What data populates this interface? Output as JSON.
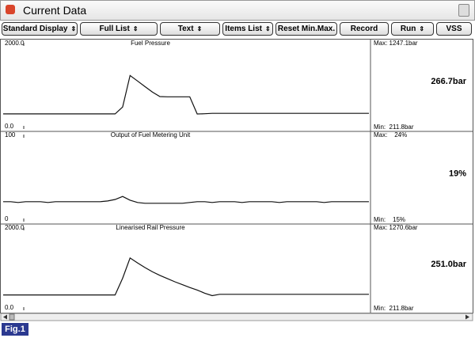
{
  "header": {
    "title": "Current Data"
  },
  "toolbar": {
    "buttons": [
      "Standard Display",
      "Full List",
      "Text",
      "Items List",
      "Reset Min.Max.",
      "Record",
      "Run",
      "VSS"
    ]
  },
  "panels": [
    {
      "type": "line",
      "title": "Fuel Pressure",
      "ylim": [
        0,
        2000
      ],
      "yticks": [
        {
          "value": 0,
          "label": "0.0"
        },
        {
          "value": 2000,
          "label": "2000.0"
        }
      ],
      "max": "Max: 1247.1bar",
      "min": "Min:  211.8bar",
      "current": "266.7bar",
      "values": [
        215,
        215,
        215,
        215,
        215,
        215,
        215,
        215,
        215,
        215,
        215,
        215,
        215,
        215,
        215,
        215,
        400,
        1247,
        1100,
        950,
        800,
        680,
        675,
        675,
        675,
        675,
        212,
        220,
        230,
        230,
        230,
        230,
        230,
        230,
        230,
        230,
        230,
        230,
        230,
        230,
        230,
        230,
        230,
        230,
        230,
        230,
        230,
        230,
        230,
        230
      ]
    },
    {
      "type": "line",
      "title": "Output of Fuel Metering Unit",
      "ylim": [
        0,
        100
      ],
      "yticks": [
        0,
        100
      ],
      "max": "Max:    24%",
      "min": "Min:    15%",
      "current": "19%",
      "values": [
        17,
        17,
        16,
        17,
        17,
        17,
        16,
        17,
        17,
        17,
        17,
        17,
        17,
        17,
        18,
        20,
        24,
        19,
        16,
        15,
        15,
        15,
        15,
        15,
        15,
        16,
        17,
        17,
        16,
        17,
        17,
        17,
        16,
        17,
        17,
        17,
        17,
        16,
        17,
        17,
        17,
        17,
        17,
        16,
        17,
        17,
        17,
        17,
        17,
        17
      ]
    },
    {
      "type": "line",
      "title": "Linearised Rail Pressure",
      "ylim": [
        0,
        2000
      ],
      "yticks": [
        {
          "value": 0,
          "label": "0.0"
        },
        {
          "value": 2000,
          "label": "2000.0"
        }
      ],
      "max": "Max: 1270.6bar",
      "min": "Min:  211.8bar",
      "current": "251.0bar",
      "values": [
        230,
        230,
        230,
        230,
        230,
        230,
        230,
        230,
        230,
        230,
        230,
        230,
        230,
        230,
        230,
        230,
        700,
        1270,
        1130,
        1000,
        880,
        780,
        690,
        600,
        520,
        440,
        370,
        280,
        212,
        250,
        250,
        250,
        250,
        250,
        250,
        250,
        250,
        250,
        250,
        250,
        250,
        250,
        250,
        250,
        250,
        250,
        250,
        250,
        250,
        250
      ]
    }
  ],
  "figure": {
    "label": "Fig.1"
  }
}
